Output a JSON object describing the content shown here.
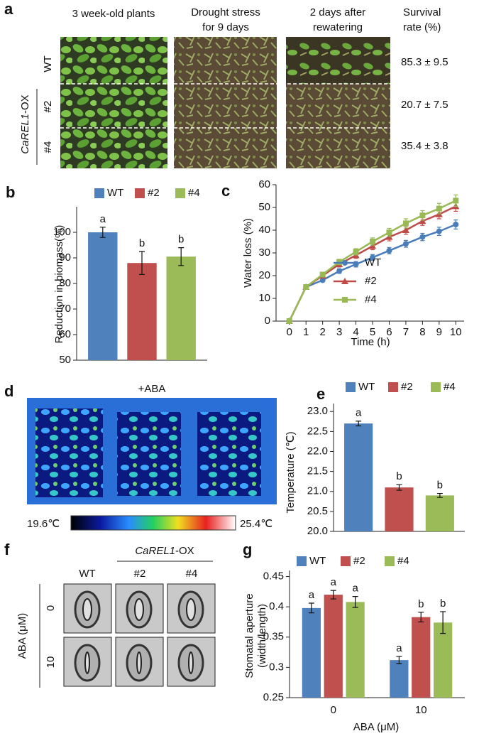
{
  "panel_labels": [
    "a",
    "b",
    "c",
    "d",
    "e",
    "f",
    "g"
  ],
  "panel_a": {
    "column_headers": [
      [
        "3 week-old  plants"
      ],
      [
        "Drought  stress",
        "for 9 days"
      ],
      [
        "2 days after",
        "rewatering"
      ],
      [
        "Survival",
        "rate (%)"
      ]
    ],
    "row_labels": [
      "WT",
      "#2",
      "#4"
    ],
    "group_label": {
      "italic": "CaREL1",
      "suffix": "-OX"
    },
    "survival": [
      "85.3 ± 9.5",
      "20.7 ± 7.5",
      "35.4 ± 3.8"
    ]
  },
  "panel_d": {
    "treatment": "+ABA",
    "scale_min": "19.6℃",
    "scale_max": "25.4℃"
  },
  "panel_f": {
    "group_label": {
      "italic": "CaREL1",
      "suffix": "-OX"
    },
    "column_labels": [
      "WT",
      "#2",
      "#4"
    ],
    "axis_label": "ABA (μM)",
    "row_labels": [
      "0",
      "10"
    ]
  },
  "chart_data": [
    {
      "type": "bar",
      "ylabel": "Reduction in biomass(%)",
      "categories": [
        null
      ],
      "series": [
        {
          "name": "WT",
          "color": "#4f81bd",
          "values": [
            100
          ],
          "errors": [
            2
          ],
          "annotations": [
            "a"
          ]
        },
        {
          "name": "#2",
          "color": "#c0504d",
          "values": [
            88
          ],
          "errors": [
            4.5
          ],
          "annotations": [
            "b"
          ]
        },
        {
          "name": "#4",
          "color": "#9bbb59",
          "values": [
            90.5
          ],
          "errors": [
            3.5
          ],
          "annotations": [
            "b"
          ]
        }
      ],
      "ylim": [
        50,
        110
      ],
      "yticks": [
        50,
        60,
        70,
        80,
        90,
        100
      ],
      "legend": "top",
      "grid": false
    },
    {
      "type": "line",
      "xlabel": "Time (h)",
      "ylabel": "Water loss (%)",
      "x": [
        0,
        1,
        2,
        3,
        4,
        5,
        6,
        7,
        8,
        9,
        10
      ],
      "series": [
        {
          "name": "WT",
          "color": "#4a7ebb",
          "marker": "circle",
          "values": [
            0,
            15,
            18,
            22,
            25,
            28,
            31,
            34,
            37,
            39.5,
            42.5
          ],
          "errors": [
            0,
            0.6,
            0.8,
            1,
            1.2,
            1.3,
            1.4,
            1.5,
            1.6,
            1.8,
            2
          ]
        },
        {
          "name": "#2",
          "color": "#be4b48",
          "marker": "triangle",
          "values": [
            0,
            15,
            20,
            25,
            29,
            33,
            37,
            40,
            44,
            47,
            50.5
          ],
          "errors": [
            0,
            0.6,
            0.9,
            1.2,
            1.4,
            1.6,
            1.7,
            1.8,
            1.9,
            2,
            2.2
          ]
        },
        {
          "name": "#4",
          "color": "#98b954",
          "marker": "square",
          "values": [
            0,
            15,
            20.5,
            26,
            30.5,
            35,
            39,
            43,
            46.5,
            49.5,
            53
          ],
          "errors": [
            0,
            0.6,
            0.9,
            1.2,
            1.4,
            1.6,
            1.8,
            2,
            2.1,
            2.3,
            2.5
          ]
        }
      ],
      "xlim": [
        -0.8,
        10.5
      ],
      "xticks": [
        0,
        1,
        2,
        3,
        4,
        5,
        6,
        7,
        8,
        9,
        10
      ],
      "ylim": [
        0,
        60
      ],
      "yticks": [
        0,
        10,
        20,
        30,
        40,
        50,
        60
      ],
      "legend": "right",
      "grid": false
    },
    {
      "type": "bar",
      "ylabel": "Temperature  (℃)",
      "categories": [
        null
      ],
      "series": [
        {
          "name": "WT",
          "color": "#4f81bd",
          "values": [
            22.7
          ],
          "errors": [
            0.06
          ],
          "annotations": [
            "a"
          ]
        },
        {
          "name": "#2",
          "color": "#c0504d",
          "values": [
            21.1
          ],
          "errors": [
            0.07
          ],
          "annotations": [
            "b"
          ]
        },
        {
          "name": "#4",
          "color": "#9bbb59",
          "values": [
            20.9
          ],
          "errors": [
            0.05
          ],
          "annotations": [
            "b"
          ]
        }
      ],
      "ylim": [
        20,
        23.2
      ],
      "yticks": [
        {
          "value": 20,
          "label": "20.0"
        },
        {
          "value": 20.5,
          "label": "20.5"
        },
        {
          "value": 21,
          "label": "21.0"
        },
        {
          "value": 21.5,
          "label": "21.5"
        },
        {
          "value": 22,
          "label": "22.0"
        },
        {
          "value": 22.5,
          "label": "22.5"
        },
        {
          "value": 23,
          "label": "23.0"
        }
      ],
      "legend": "top",
      "grid": false
    },
    {
      "type": "bar",
      "xlabel": "ABA (μM)",
      "ylabel": [
        "Stomatal aperture",
        "(width/length)"
      ],
      "categories": [
        "0",
        "10"
      ],
      "series": [
        {
          "name": "WT",
          "color": "#4f81bd",
          "values": [
            0.398,
            0.312
          ],
          "errors": [
            0.008,
            0.006
          ],
          "annotations": [
            "a",
            "a"
          ]
        },
        {
          "name": "#2",
          "color": "#c0504d",
          "values": [
            0.42,
            0.383
          ],
          "errors": [
            0.007,
            0.008
          ],
          "annotations": [
            "a",
            "b"
          ]
        },
        {
          "name": "#4",
          "color": "#9bbb59",
          "values": [
            0.408,
            0.374
          ],
          "errors": [
            0.009,
            0.018
          ],
          "annotations": [
            "a",
            "b"
          ]
        }
      ],
      "ylim": [
        0.25,
        0.46
      ],
      "yticks": [
        0.25,
        0.3,
        0.35,
        0.4,
        0.45
      ],
      "legend": "top",
      "grid": false
    }
  ]
}
